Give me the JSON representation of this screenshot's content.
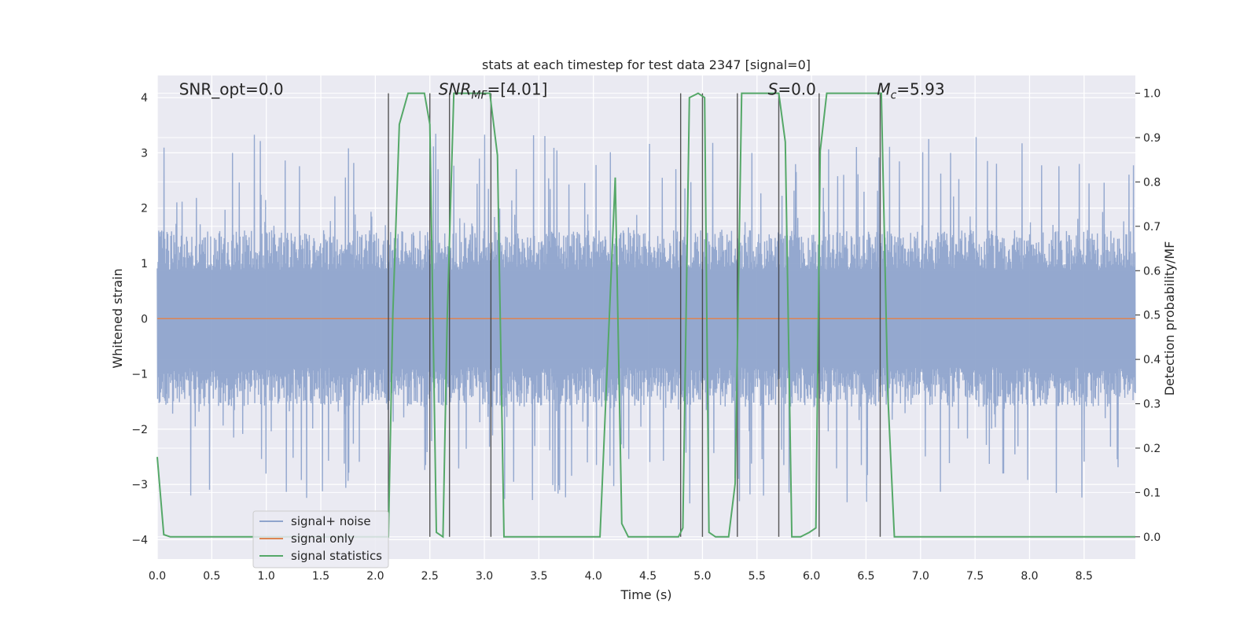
{
  "chart_data": {
    "type": "line",
    "title": "stats at each timestep for test data 2347 [signal=0]",
    "xlabel": "Time (s)",
    "ylabel_left": "Whitened strain",
    "ylabel_right": "Detection probability/MF",
    "xlim": [
      0.0,
      8.97
    ],
    "ylim_left": [
      -4.35,
      4.4
    ],
    "ylim_right": [
      -0.05,
      1.04
    ],
    "x_ticks": [
      0.0,
      0.5,
      1.0,
      1.5,
      2.0,
      2.5,
      3.0,
      3.5,
      4.0,
      4.5,
      5.0,
      5.5,
      6.0,
      6.5,
      7.0,
      7.5,
      8.0,
      8.5
    ],
    "x_tick_labels": [
      "0.0",
      "0.5",
      "1.0",
      "1.5",
      "2.0",
      "2.5",
      "3.0",
      "3.5",
      "4.0",
      "4.5",
      "5.0",
      "5.5",
      "6.0",
      "6.5",
      "7.0",
      "7.5",
      "8.0",
      "8.5"
    ],
    "y_left_ticks": [
      -4,
      -3,
      -2,
      -1,
      0,
      1,
      2,
      3,
      4
    ],
    "y_left_tick_labels": [
      "−4",
      "−3",
      "−2",
      "−1",
      "0",
      "1",
      "2",
      "3",
      "4"
    ],
    "y_right_ticks": [
      0.0,
      0.1,
      0.2,
      0.3,
      0.4,
      0.5,
      0.6,
      0.7,
      0.8,
      0.9,
      1.0
    ],
    "y_right_tick_labels": [
      "0.0",
      "0.1",
      "0.2",
      "0.3",
      "0.4",
      "0.5",
      "0.6",
      "0.7",
      "0.8",
      "0.9",
      "1.0"
    ],
    "grid": true,
    "legend": {
      "placement": "lower-left",
      "entries": [
        {
          "label": "signal+ noise",
          "color": "#8fa4cc"
        },
        {
          "label": "signal only",
          "color": "#dd8452"
        },
        {
          "label": "signal statistics",
          "color": "#55a868"
        }
      ]
    },
    "annotations": [
      {
        "text": "SNR_opt=0.0",
        "x": 0.2,
        "y": 4.05
      },
      {
        "text": "SNR_MF=[4.01]",
        "x": 2.58,
        "y": 4.05
      },
      {
        "text": "S=0.0",
        "x": 5.6,
        "y": 4.05
      },
      {
        "text": "M_c=5.93",
        "x": 6.6,
        "y": 4.05
      }
    ],
    "series": [
      {
        "name": "signal+ noise",
        "color": "#8fa4cc",
        "axis": "left",
        "description": "dense whitened noise, core band about ±1.6, peaks up to about ±3.3",
        "noise_band": [
          -1.6,
          1.6
        ],
        "peak_range": [
          -3.95,
          3.35
        ]
      },
      {
        "name": "signal only",
        "color": "#dd8452",
        "axis": "left",
        "x": [
          0.0,
          8.97
        ],
        "y": [
          0.0,
          0.0
        ]
      },
      {
        "name": "signal statistics",
        "color": "#55a868",
        "axis": "right",
        "x": [
          0.0,
          0.06,
          0.12,
          0.4,
          1.0,
          1.6,
          2.05,
          2.12,
          2.16,
          2.22,
          2.3,
          2.45,
          2.5,
          2.56,
          2.62,
          2.66,
          2.72,
          2.8,
          3.0,
          3.05,
          3.12,
          3.18,
          3.5,
          4.06,
          4.2,
          4.26,
          4.32,
          4.6,
          4.78,
          4.82,
          4.88,
          4.96,
          5.02,
          5.06,
          5.12,
          5.24,
          5.3,
          5.36,
          5.65,
          5.7,
          5.76,
          5.82,
          5.9,
          5.98,
          6.04,
          6.08,
          6.14,
          6.2,
          6.6,
          6.64,
          6.7,
          6.76,
          7.0,
          8.0,
          8.97
        ],
        "y": [
          0.18,
          0.005,
          0.0,
          0.0,
          0.0,
          0.0,
          0.0,
          0.0,
          0.5,
          0.93,
          1.0,
          1.0,
          0.93,
          0.01,
          0.0,
          0.5,
          1.0,
          1.0,
          1.0,
          1.0,
          0.86,
          0.0,
          0.0,
          0.0,
          0.81,
          0.03,
          0.0,
          0.0,
          0.0,
          0.02,
          0.99,
          1.0,
          0.99,
          0.01,
          0.0,
          0.0,
          0.12,
          1.0,
          1.0,
          1.0,
          0.89,
          0.0,
          0.0,
          0.01,
          0.02,
          0.87,
          1.0,
          1.0,
          1.0,
          1.0,
          0.32,
          0.0,
          0.0,
          0.0,
          0.0
        ]
      }
    ],
    "vertical_markers": {
      "color": "#3a3a3a",
      "x": [
        2.12,
        2.5,
        2.68,
        3.06,
        4.8,
        5.0,
        5.32,
        5.7,
        6.07,
        6.63
      ]
    }
  }
}
